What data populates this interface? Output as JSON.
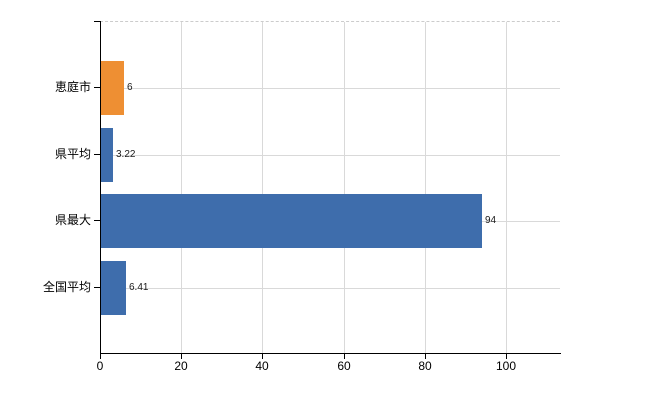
{
  "chart_data": {
    "type": "bar",
    "orientation": "horizontal",
    "title": "",
    "xlabel": "",
    "ylabel": "",
    "categories": [
      "恵庭市",
      "県平均",
      "県最大",
      "全国平均"
    ],
    "values": [
      6,
      3.22,
      94,
      6.41
    ],
    "value_labels": [
      "6",
      "3.22",
      "94",
      "6.41"
    ],
    "bar_colors": [
      "#ee8f33",
      "#3e6dac",
      "#3e6dac",
      "#3e6dac"
    ],
    "xlim": [
      0,
      113.3
    ],
    "xticks": [
      0,
      20,
      40,
      60,
      80,
      100
    ],
    "xtick_labels": [
      "0",
      "20",
      "40",
      "60",
      "80",
      "100"
    ],
    "grid": true,
    "legend": false
  },
  "colors": {
    "accent_orange": "#ee8f33",
    "accent_blue": "#3e6dac",
    "grid": "#d9d9d9",
    "axis": "#000000",
    "text": "#000000",
    "background": "#ffffff"
  }
}
